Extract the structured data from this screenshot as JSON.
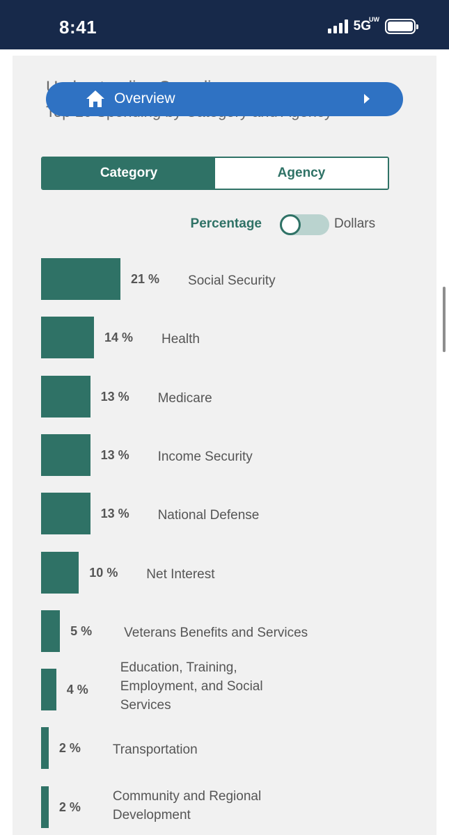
{
  "status_bar": {
    "time": "8:41",
    "network": "5G",
    "network_sup": "UW"
  },
  "header": {
    "title_hidden": "Understanding Spending",
    "subtitle_hidden": "Top 10 Spending by Category and Agency",
    "overview_label": "Overview",
    "overview_icon": "home-icon",
    "chevron_icon": "chevron-right-icon"
  },
  "tabs": {
    "category_label": "Category",
    "agency_label": "Agency",
    "active": "Category"
  },
  "toggle": {
    "left_label": "Percentage",
    "right_label": "Dollars",
    "selected": "Percentage"
  },
  "colors": {
    "accent": "#2f7266",
    "header_bg": "#17294a",
    "pill_blue": "#2f72c3",
    "panel_bg": "#f1f1f1"
  },
  "chart_data": {
    "type": "bar",
    "orientation": "horizontal",
    "categories": [
      "Social Security",
      "Health",
      "Medicare",
      "Income Security",
      "National Defense",
      "Net Interest",
      "Veterans Benefits and Services",
      "Education, Training, Employment, and Social Services",
      "Transportation",
      "Community and Regional Development"
    ],
    "values": [
      21,
      14,
      13,
      13,
      13,
      10,
      5,
      4,
      2,
      2
    ],
    "value_labels": [
      "21 %",
      "14 %",
      "13 %",
      "13 %",
      "13 %",
      "10 %",
      "5 %",
      "4 %",
      "2 %",
      "2 %"
    ],
    "unit": "%",
    "title": "",
    "xlabel": "",
    "ylabel": ""
  }
}
